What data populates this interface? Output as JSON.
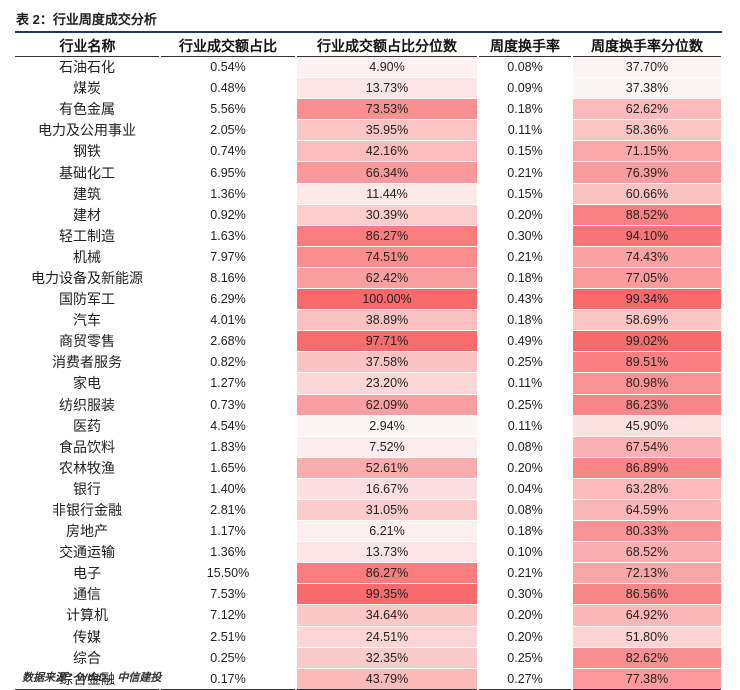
{
  "title": "表 2：行业周度成交分析",
  "table": {
    "header": [
      "行业名称",
      "行业成交额占比",
      "行业成交额占比分位数",
      "周度换手率",
      "周度换手率分位数"
    ],
    "rows": [
      [
        "石油石化",
        "0.54%",
        "4.90%",
        "0.08%",
        "37.70%"
      ],
      [
        "煤炭",
        "0.48%",
        "13.73%",
        "0.09%",
        "37.38%"
      ],
      [
        "有色金属",
        "5.56%",
        "73.53%",
        "0.18%",
        "62.62%"
      ],
      [
        "电力及公用事业",
        "2.05%",
        "35.95%",
        "0.11%",
        "58.36%"
      ],
      [
        "钢铁",
        "0.74%",
        "42.16%",
        "0.15%",
        "71.15%"
      ],
      [
        "基础化工",
        "6.95%",
        "66.34%",
        "0.21%",
        "76.39%"
      ],
      [
        "建筑",
        "1.36%",
        "11.44%",
        "0.15%",
        "60.66%"
      ],
      [
        "建材",
        "0.92%",
        "30.39%",
        "0.20%",
        "88.52%"
      ],
      [
        "轻工制造",
        "1.63%",
        "86.27%",
        "0.30%",
        "94.10%"
      ],
      [
        "机械",
        "7.97%",
        "74.51%",
        "0.21%",
        "74.43%"
      ],
      [
        "电力设备及新能源",
        "8.16%",
        "62.42%",
        "0.18%",
        "77.05%"
      ],
      [
        "国防军工",
        "6.29%",
        "100.00%",
        "0.43%",
        "99.34%"
      ],
      [
        "汽车",
        "4.01%",
        "38.89%",
        "0.18%",
        "58.69%"
      ],
      [
        "商贸零售",
        "2.68%",
        "97.71%",
        "0.49%",
        "99.02%"
      ],
      [
        "消费者服务",
        "0.82%",
        "37.58%",
        "0.25%",
        "89.51%"
      ],
      [
        "家电",
        "1.27%",
        "23.20%",
        "0.11%",
        "80.98%"
      ],
      [
        "纺织服装",
        "0.73%",
        "62.09%",
        "0.25%",
        "86.23%"
      ],
      [
        "医药",
        "4.54%",
        "2.94%",
        "0.11%",
        "45.90%"
      ],
      [
        "食品饮料",
        "1.83%",
        "7.52%",
        "0.08%",
        "67.54%"
      ],
      [
        "农林牧渔",
        "1.65%",
        "52.61%",
        "0.20%",
        "86.89%"
      ],
      [
        "银行",
        "1.40%",
        "16.67%",
        "0.04%",
        "63.28%"
      ],
      [
        "非银行金融",
        "2.81%",
        "31.05%",
        "0.08%",
        "64.59%"
      ],
      [
        "房地产",
        "1.17%",
        "6.21%",
        "0.18%",
        "80.33%"
      ],
      [
        "交通运输",
        "1.36%",
        "13.73%",
        "0.10%",
        "68.52%"
      ],
      [
        "电子",
        "15.50%",
        "86.27%",
        "0.21%",
        "72.13%"
      ],
      [
        "通信",
        "7.53%",
        "99.35%",
        "0.30%",
        "86.56%"
      ],
      [
        "计算机",
        "7.12%",
        "34.64%",
        "0.20%",
        "64.92%"
      ],
      [
        "传媒",
        "2.51%",
        "24.51%",
        "0.20%",
        "51.80%"
      ],
      [
        "综合",
        "0.25%",
        "32.35%",
        "0.25%",
        "82.62%"
      ],
      [
        "综合金融",
        "0.17%",
        "43.79%",
        "0.27%",
        "77.38%"
      ]
    ]
  },
  "note": "数据来源：WIND，中信建投"
}
